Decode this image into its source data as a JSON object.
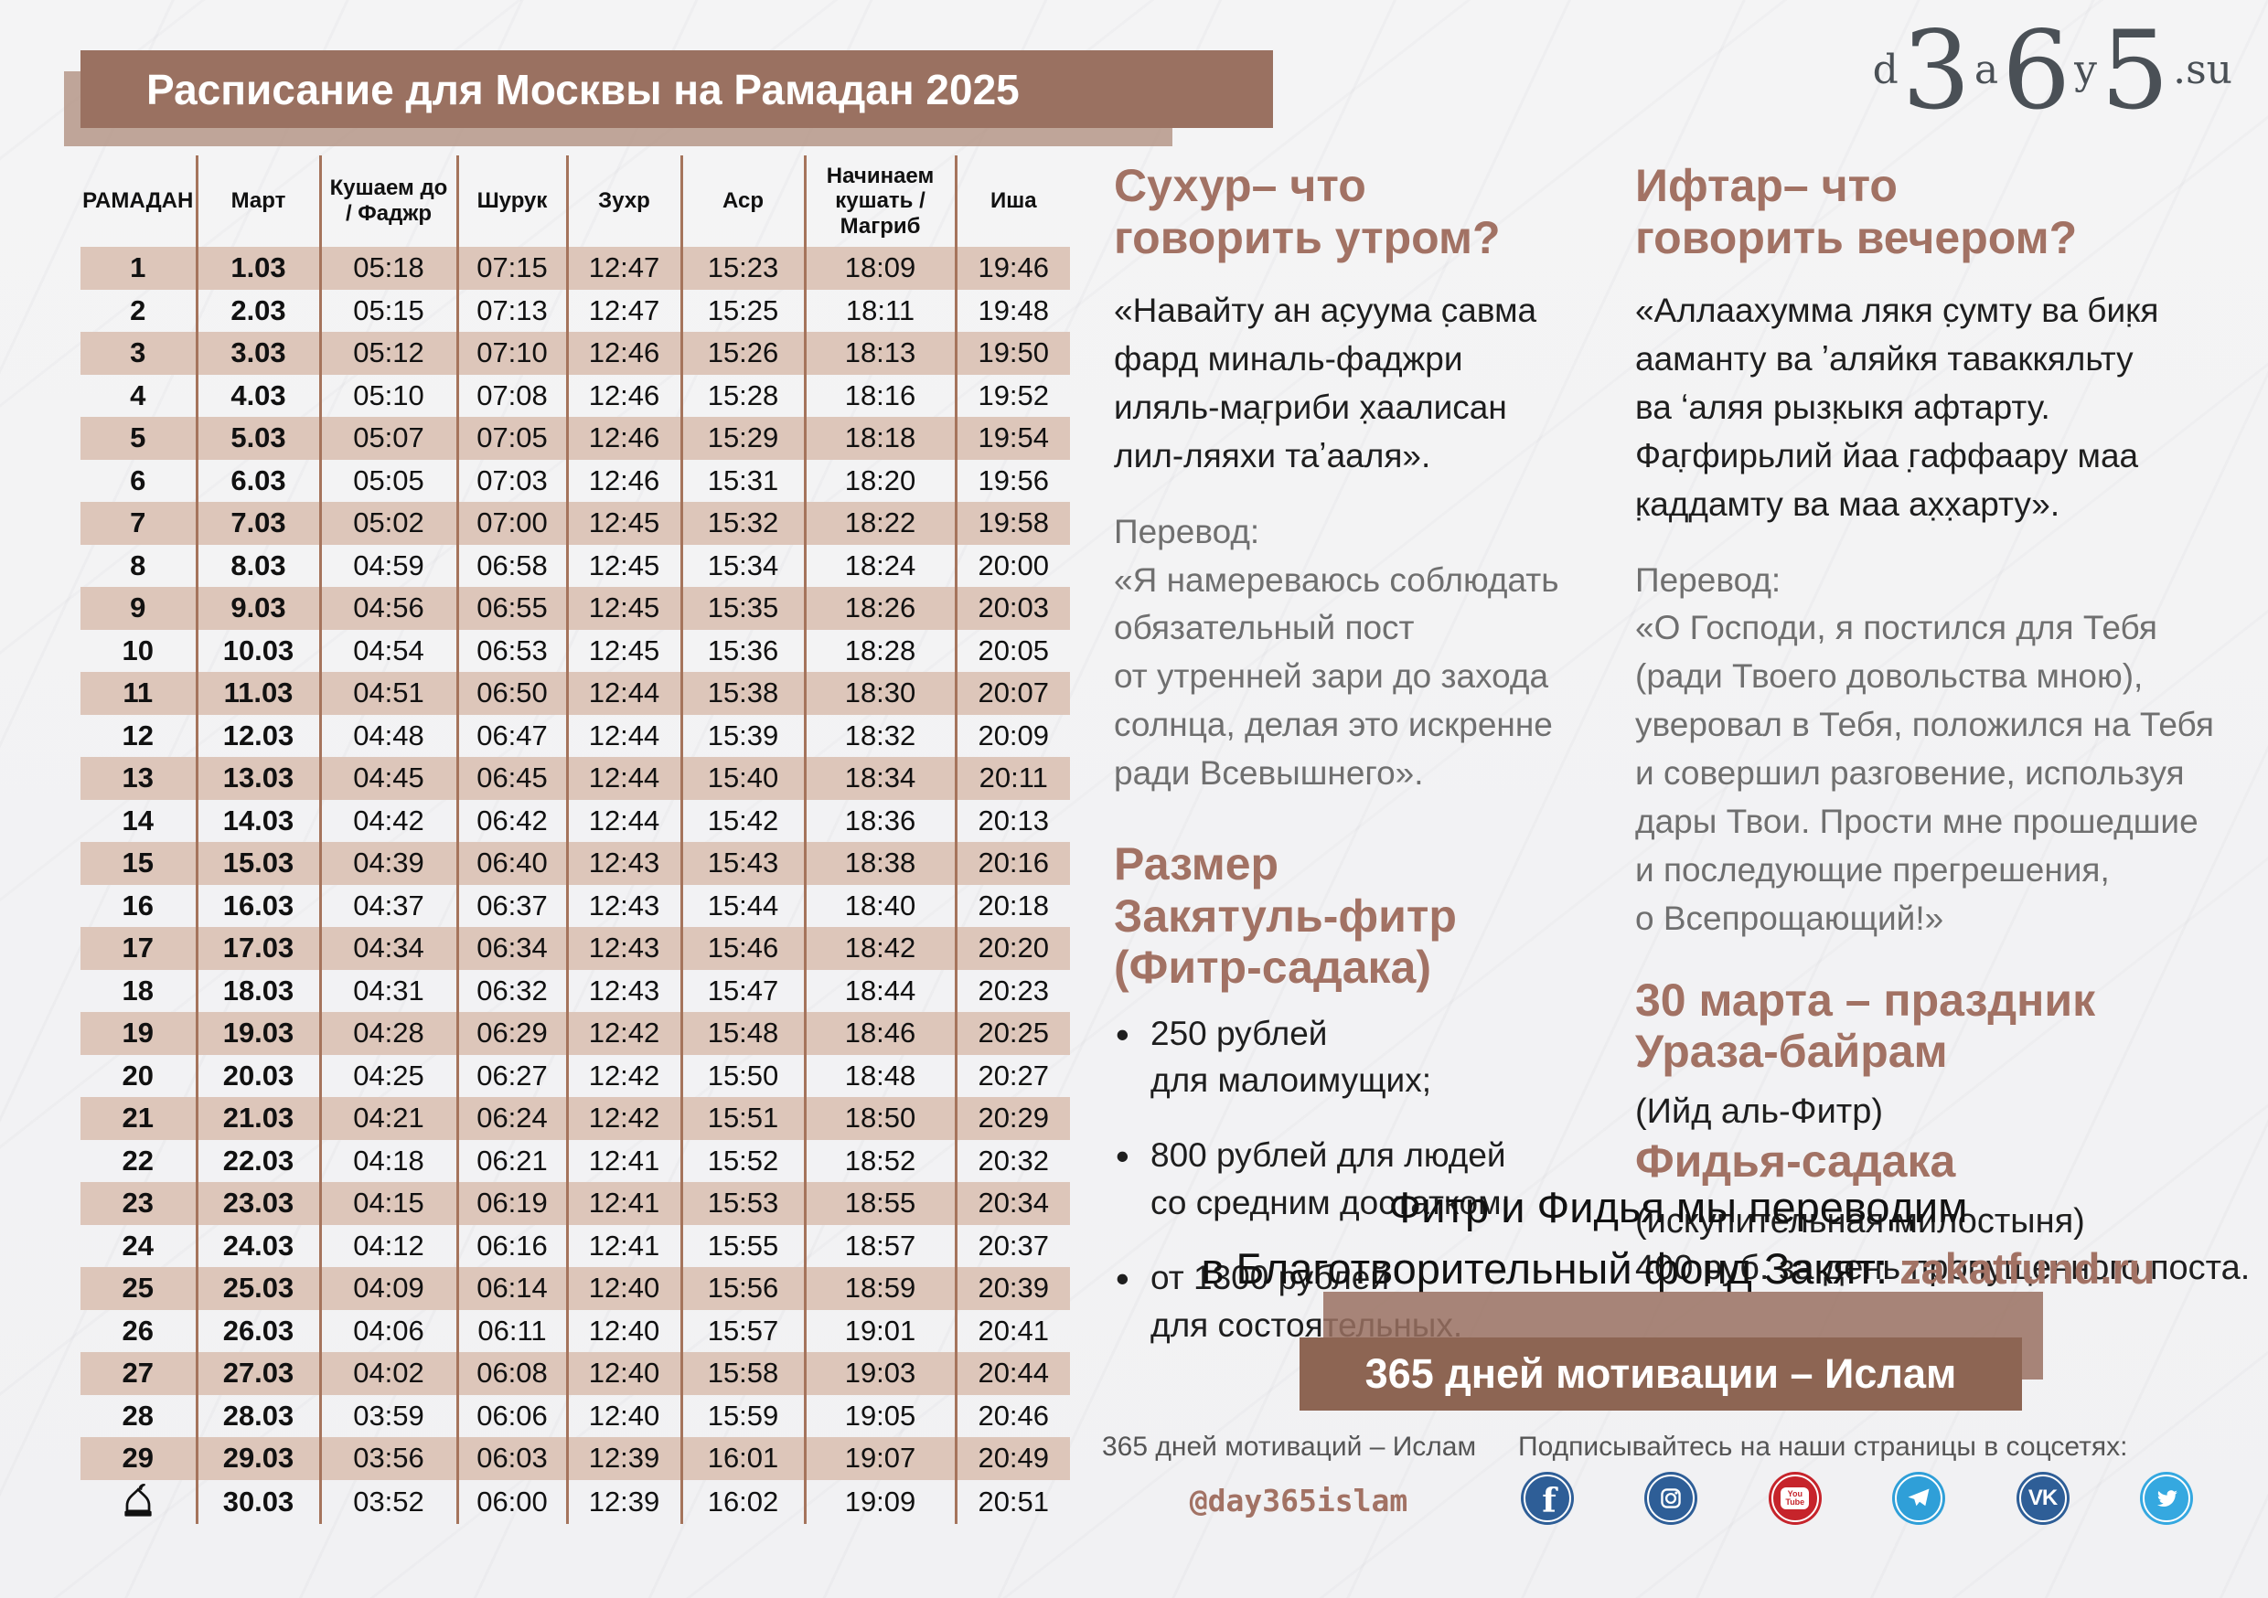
{
  "title": "Расписание для Москвы на Рамадан 2025",
  "logo": {
    "d": "d",
    "n3": "3",
    "a": "a",
    "n6": "6",
    "y": "y",
    "n5": "5",
    "su": ".su"
  },
  "colors": {
    "accent_brown": "#a27264",
    "banner_brown": "#9a7161",
    "row_tan": "#ddc6ba",
    "divider_brown": "#a5745c"
  },
  "table": {
    "headers": [
      "РАМАДАН",
      "Март",
      "Кушаем до\n/ Фаджр",
      "Шурук",
      "Зухр",
      "Аср",
      "Начинаем\nкушать /\nМагриб",
      "Иша"
    ],
    "ramadan_30_icon": "mosque-icon",
    "rows": [
      [
        "1",
        "1.03",
        "05:18",
        "07:15",
        "12:47",
        "15:23",
        "18:09",
        "19:46"
      ],
      [
        "2",
        "2.03",
        "05:15",
        "07:13",
        "12:47",
        "15:25",
        "18:11",
        "19:48"
      ],
      [
        "3",
        "3.03",
        "05:12",
        "07:10",
        "12:46",
        "15:26",
        "18:13",
        "19:50"
      ],
      [
        "4",
        "4.03",
        "05:10",
        "07:08",
        "12:46",
        "15:28",
        "18:16",
        "19:52"
      ],
      [
        "5",
        "5.03",
        "05:07",
        "07:05",
        "12:46",
        "15:29",
        "18:18",
        "19:54"
      ],
      [
        "6",
        "6.03",
        "05:05",
        "07:03",
        "12:46",
        "15:31",
        "18:20",
        "19:56"
      ],
      [
        "7",
        "7.03",
        "05:02",
        "07:00",
        "12:45",
        "15:32",
        "18:22",
        "19:58"
      ],
      [
        "8",
        "8.03",
        "04:59",
        "06:58",
        "12:45",
        "15:34",
        "18:24",
        "20:00"
      ],
      [
        "9",
        "9.03",
        "04:56",
        "06:55",
        "12:45",
        "15:35",
        "18:26",
        "20:03"
      ],
      [
        "10",
        "10.03",
        "04:54",
        "06:53",
        "12:45",
        "15:36",
        "18:28",
        "20:05"
      ],
      [
        "11",
        "11.03",
        "04:51",
        "06:50",
        "12:44",
        "15:38",
        "18:30",
        "20:07"
      ],
      [
        "12",
        "12.03",
        "04:48",
        "06:47",
        "12:44",
        "15:39",
        "18:32",
        "20:09"
      ],
      [
        "13",
        "13.03",
        "04:45",
        "06:45",
        "12:44",
        "15:40",
        "18:34",
        "20:11"
      ],
      [
        "14",
        "14.03",
        "04:42",
        "06:42",
        "12:44",
        "15:42",
        "18:36",
        "20:13"
      ],
      [
        "15",
        "15.03",
        "04:39",
        "06:40",
        "12:43",
        "15:43",
        "18:38",
        "20:16"
      ],
      [
        "16",
        "16.03",
        "04:37",
        "06:37",
        "12:43",
        "15:44",
        "18:40",
        "20:18"
      ],
      [
        "17",
        "17.03",
        "04:34",
        "06:34",
        "12:43",
        "15:46",
        "18:42",
        "20:20"
      ],
      [
        "18",
        "18.03",
        "04:31",
        "06:32",
        "12:43",
        "15:47",
        "18:44",
        "20:23"
      ],
      [
        "19",
        "19.03",
        "04:28",
        "06:29",
        "12:42",
        "15:48",
        "18:46",
        "20:25"
      ],
      [
        "20",
        "20.03",
        "04:25",
        "06:27",
        "12:42",
        "15:50",
        "18:48",
        "20:27"
      ],
      [
        "21",
        "21.03",
        "04:21",
        "06:24",
        "12:42",
        "15:51",
        "18:50",
        "20:29"
      ],
      [
        "22",
        "22.03",
        "04:18",
        "06:21",
        "12:41",
        "15:52",
        "18:52",
        "20:32"
      ],
      [
        "23",
        "23.03",
        "04:15",
        "06:19",
        "12:41",
        "15:53",
        "18:55",
        "20:34"
      ],
      [
        "24",
        "24.03",
        "04:12",
        "06:16",
        "12:41",
        "15:55",
        "18:57",
        "20:37"
      ],
      [
        "25",
        "25.03",
        "04:09",
        "06:14",
        "12:40",
        "15:56",
        "18:59",
        "20:39"
      ],
      [
        "26",
        "26.03",
        "04:06",
        "06:11",
        "12:40",
        "15:57",
        "19:01",
        "20:41"
      ],
      [
        "27",
        "27.03",
        "04:02",
        "06:08",
        "12:40",
        "15:58",
        "19:03",
        "20:44"
      ],
      [
        "28",
        "28.03",
        "03:59",
        "06:06",
        "12:40",
        "15:59",
        "19:05",
        "20:46"
      ],
      [
        "29",
        "29.03",
        "03:56",
        "06:03",
        "12:39",
        "16:01",
        "19:07",
        "20:49"
      ],
      [
        "",
        "30.03",
        "03:52",
        "06:00",
        "12:39",
        "16:02",
        "19:09",
        "20:51"
      ]
    ]
  },
  "sections": {
    "suhur": {
      "heading": "Сухур– что\nговорить утром?",
      "arabic": "«Навайту ан ас̣уума с̣авма\nфард миналь-фаджри\nиляль-маг̣риби х̣аалисан\nлил-ляяхи таʼааля».",
      "perevod_label": "Перевод:",
      "translation": "«Я намереваюсь соблюдать\nобязательный пост\nот утренней зари до захода\nсолнца, делая это искренне\nради Всевышнего»."
    },
    "zakat": {
      "heading": "Размер\nЗакятуль-фитр\n(Фитр-садака)",
      "bullets": [
        "250 рублей\nдля малоимущих;",
        "800 рублей для людей\nсо средним достатком;",
        "от 1300 рублей\nдля состоятельных."
      ]
    },
    "iftar": {
      "heading": "Ифтар– что\nговорить вечером?",
      "arabic": "«Аллаахумма лякя с̣умту ва бик̣я\nааманту ва ʼаляйкя таваккяльту\nва ʻаляя рызк̣ыкя афтарту.\nФаг̣фирьлий йаа г̣аффаару маа\nк̣аддамту ва маа ах̣х̣арту».",
      "perevod_label": "Перевод:",
      "translation": "«О Господи, я постился для Тебя\n(ради Твоего довольства мною),\nуверовал в Тебя, положился на Тебя\nи совершил разговение, используя\nдары Твои. Прости мне прошедшие\nи последующие прегрешения,\nо Всепрощающий!»"
    },
    "holiday": {
      "heading": "30 марта – праздник\nУраза-байрам",
      "sub": "(Ийд аль-Фитр)"
    },
    "fidya": {
      "heading": "Фидья-садака",
      "sub1": "(искупительная милостыня)",
      "sub2": "400 руб. за день пропущенного поста."
    }
  },
  "donation": {
    "line1": "Фитр и Фидья мы переводим",
    "line2": "в Благотворительный фонд Закят: ",
    "link": "zakatfund.ru"
  },
  "banner365": "365 дней мотивации – Ислам",
  "footer": {
    "brand": "365 дней мотиваций – Ислам",
    "handle": "@day365islam",
    "subscribe": "Подписывайтесь на наши страницы в соцсетях:",
    "socials": [
      {
        "name": "facebook",
        "color": "#2e5e97"
      },
      {
        "name": "instagram",
        "color": "#2e5e97"
      },
      {
        "name": "youtube",
        "color": "#c6242b"
      },
      {
        "name": "telegram",
        "color": "#2f9fd8"
      },
      {
        "name": "vk",
        "color": "#2e5e97"
      },
      {
        "name": "twitter",
        "color": "#35a8e0"
      }
    ]
  }
}
